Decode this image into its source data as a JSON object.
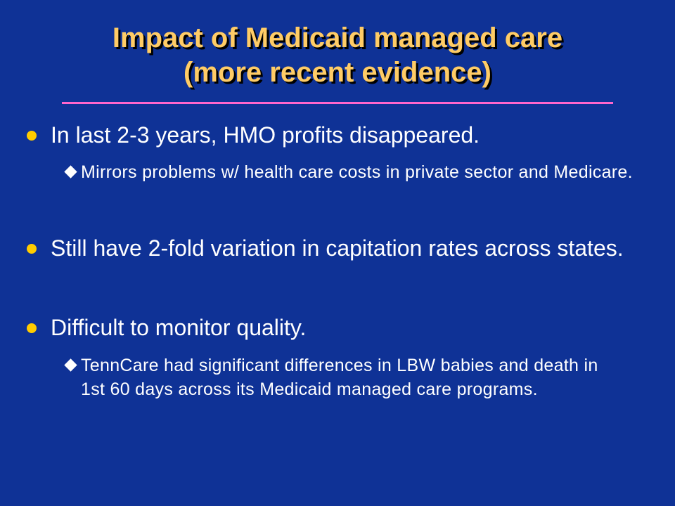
{
  "slide": {
    "title_line1": "Impact of Medicaid managed care",
    "title_line2": "(more recent evidence)",
    "bullets": [
      {
        "level": 1,
        "text": "In last 2-3 years, HMO profits disappeared."
      },
      {
        "level": 2,
        "text": "Mirrors problems w/ health care costs in private sector and Medicare."
      },
      {
        "level": 1,
        "text": "Still have 2-fold variation in capitation rates across states."
      },
      {
        "level": 1,
        "text": "Difficult to monitor quality."
      },
      {
        "level": 2,
        "text": "TennCare had significant differences in LBW babies and death in 1st 60 days across its Medicaid managed care programs."
      }
    ]
  },
  "colors": {
    "background": "#0f3296",
    "title": "#ffcc66",
    "rule": "#ff66cc",
    "bullet_l1": "#ffcc00",
    "bullet_l2": "#ffffff",
    "text": "#ffffff"
  }
}
